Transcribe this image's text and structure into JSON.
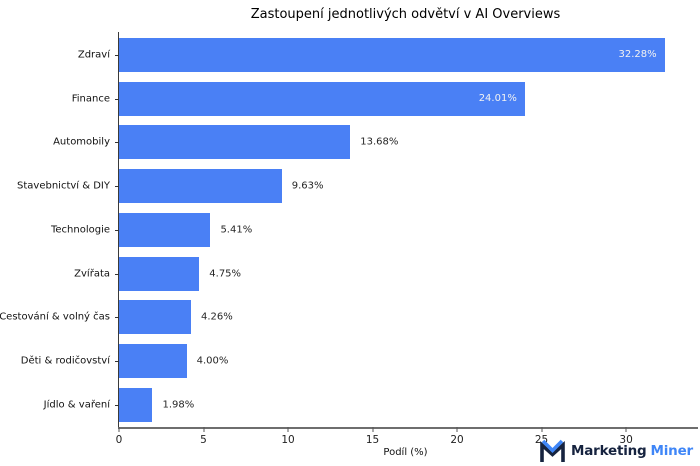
{
  "chart_data": {
    "type": "bar",
    "orientation": "horizontal",
    "title": "Zastoupení jednotlivých odvětví v AI Overviews",
    "categories": [
      "Zdraví",
      "Finance",
      "Automobily",
      "Stavebnictví & DIY",
      "Technologie",
      "Zvířata",
      "Cestování & volný čas",
      "Děti & rodičovství",
      "Jídlo & vaření"
    ],
    "values": [
      32.28,
      24.01,
      13.68,
      9.63,
      5.41,
      4.75,
      4.26,
      4.0,
      1.98
    ],
    "value_labels": [
      "32.28%",
      "24.01%",
      "13.68%",
      "9.63%",
      "5.41%",
      "4.75%",
      "4.26%",
      "4.00%",
      "1.98%"
    ],
    "label_inside": [
      true,
      true,
      false,
      false,
      false,
      false,
      false,
      false,
      false
    ],
    "xlabel": "Podíl (%)",
    "xticks": [
      0,
      5,
      10,
      15,
      20,
      25,
      30
    ],
    "xlim": [
      0,
      33.9
    ],
    "bar_color": "#4a80f5",
    "grid": false,
    "legend": null
  },
  "branding": {
    "logo_icon": "marketing-miner-m-icon",
    "name_part1": "Marketing",
    "name_part2": "Miner",
    "dark_color": "#16233f",
    "blue_color": "#3f86f7"
  }
}
